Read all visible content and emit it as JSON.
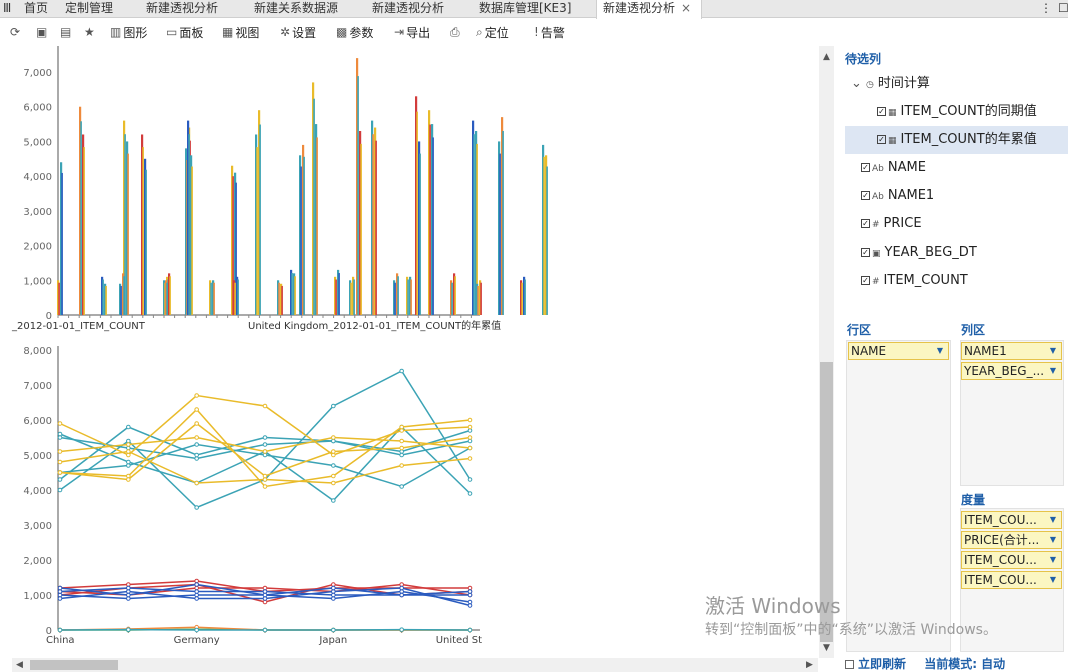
{
  "tabs": {
    "menu_icon": "Ⅲ",
    "items": [
      "首页",
      "定制管理",
      "新建透视分析",
      "新建关系数据源",
      "新建透视分析",
      "数据库管理[KE3]",
      "新建透视分析"
    ],
    "close": "×",
    "more": "⋮",
    "restore": "☐"
  },
  "toolbar": {
    "items": [
      {
        "icon": "refresh-icon",
        "glyph": "⟳",
        "label": ""
      },
      {
        "icon": "save-icon",
        "glyph": "▣",
        "label": ""
      },
      {
        "icon": "save-as-icon",
        "glyph": "▤",
        "label": ""
      },
      {
        "icon": "star-icon",
        "glyph": "★",
        "label": ""
      },
      {
        "icon": "chart-icon",
        "glyph": "▥",
        "label": "图形"
      },
      {
        "icon": "panel-icon",
        "glyph": "▭",
        "label": "面板"
      },
      {
        "icon": "view-icon",
        "glyph": "▦",
        "label": "视图"
      },
      {
        "icon": "gear-icon",
        "glyph": "✲",
        "label": "设置"
      },
      {
        "icon": "param-icon",
        "glyph": "▩",
        "label": "参数"
      },
      {
        "icon": "export-icon",
        "glyph": "⇥",
        "label": "导出"
      },
      {
        "icon": "print-icon",
        "glyph": "⎙",
        "label": ""
      },
      {
        "icon": "locate-icon",
        "glyph": "⌕",
        "label": "定位"
      },
      {
        "icon": "alert-icon",
        "glyph": "!",
        "label": "告警"
      }
    ]
  },
  "panel": {
    "candidates_title": "待选列",
    "tree": [
      {
        "label": "时间计算",
        "type": "group",
        "icon": "clock-icon",
        "glyph": "◷"
      },
      {
        "label": "ITEM_COUNT的同期值",
        "type": "calc",
        "icon": "calc-icon",
        "glyph": "▦",
        "checked": true
      },
      {
        "label": "ITEM_COUNT的年累值",
        "type": "calc",
        "icon": "calc-icon",
        "glyph": "▦",
        "checked": true,
        "selected": true
      },
      {
        "label": "NAME",
        "type": "text",
        "icon": "text-field-icon",
        "glyph": "Ab",
        "checked": true
      },
      {
        "label": "NAME1",
        "type": "text",
        "icon": "text-field-icon",
        "glyph": "Ab",
        "checked": true
      },
      {
        "label": "PRICE",
        "type": "number",
        "icon": "number-field-icon",
        "glyph": "#",
        "checked": true
      },
      {
        "label": "YEAR_BEG_DT",
        "type": "date",
        "icon": "date-field-icon",
        "glyph": "▣",
        "checked": true
      },
      {
        "label": "ITEM_COUNT",
        "type": "number",
        "icon": "number-field-icon",
        "glyph": "#",
        "checked": true
      }
    ],
    "row_zone_title": "行区",
    "row_fields": [
      "NAME"
    ],
    "col_zone_title": "列区",
    "col_fields": [
      "NAME1",
      "YEAR_BEG_..."
    ],
    "measure_title": "度量",
    "measures": [
      "ITEM_COU...",
      "PRICE(合计...",
      "ITEM_COU...",
      "ITEM_COU..."
    ],
    "footer_checkbox": "立即刷新",
    "footer_mode": "当前模式: 自动"
  },
  "watermark": {
    "line1": "激活 Windows",
    "line2": "转到“控制面板”中的“系统”以激活 Windows。"
  },
  "colors": {
    "teal": "#3ba3b5",
    "gold": "#e9bb2a",
    "red": "#d23b3b",
    "blue": "#2a5bbf",
    "green": "#5aa850",
    "orange": "#ee8a3c",
    "accent": "#1f5fa8"
  },
  "chart_data": [
    {
      "type": "bar",
      "ylim": [
        0,
        7000
      ],
      "yticks": [
        "0",
        "1,000",
        "2,000",
        "3,000",
        "4,000",
        "5,000",
        "6,000",
        "7,000"
      ],
      "xlabels": [
        "_2012-01-01_ITEM_COUNT",
        "United Kingdom_2012-01-01_ITEM_COUNT的年累值"
      ],
      "groups": [
        {
          "values": [
            1000,
            4400,
            6000,
            5200,
            1100,
            900,
            5600,
            5000
          ]
        },
        {
          "values": [
            900,
            1200,
            5200,
            4500,
            1000,
            1100,
            4800,
            5400
          ]
        },
        {
          "values": [
            1000,
            1200,
            5600,
            4600,
            1000,
            1000,
            4300,
            4100
          ]
        },
        {
          "values": [
            1000,
            1100,
            5200,
            5900,
            1000,
            900,
            4600,
            4900
          ]
        },
        {
          "values": [
            1300,
            1200,
            6700,
            5500,
            1100,
            1300,
            7400,
            5300
          ]
        },
        {
          "values": [
            1000,
            1100,
            5600,
            5400,
            1000,
            1200,
            6300,
            5000
          ]
        },
        {
          "values": [
            1100,
            1100,
            5900,
            5500,
            1000,
            1200,
            5600,
            5300
          ]
        },
        {
          "values": [
            900,
            1000,
            5000,
            5700,
            1000,
            1100,
            4900,
            4600
          ]
        }
      ]
    },
    {
      "type": "line",
      "ylim": [
        0,
        8000
      ],
      "yticks": [
        "0",
        "1,000",
        "2,000",
        "3,000",
        "4,000",
        "5,000",
        "6,000",
        "7,000",
        "8,000"
      ],
      "categories": [
        "China",
        "",
        "Germany",
        "",
        "Japan",
        "",
        "United St"
      ],
      "series": [
        {
          "color": "teal",
          "values": [
            4000,
            5400,
            3500,
            4300,
            6400,
            7400,
            4300
          ]
        },
        {
          "color": "teal",
          "values": [
            5500,
            5200,
            4900,
            5300,
            5400,
            5100,
            5700
          ]
        },
        {
          "color": "teal",
          "values": [
            4500,
            4700,
            5300,
            5000,
            4700,
            4100,
            5200
          ]
        },
        {
          "color": "teal",
          "values": [
            5600,
            4800,
            4200,
            5100,
            3700,
            5800,
            3900
          ]
        },
        {
          "color": "teal",
          "values": [
            4300,
            5800,
            5000,
            5500,
            5400,
            5000,
            5400
          ]
        },
        {
          "color": "gold",
          "values": [
            5900,
            5000,
            6700,
            6400,
            5000,
            5700,
            5800
          ]
        },
        {
          "color": "gold",
          "values": [
            4500,
            4400,
            6300,
            4100,
            4400,
            5800,
            6000
          ]
        },
        {
          "color": "gold",
          "values": [
            5100,
            5300,
            5500,
            5100,
            5500,
            5400,
            5200
          ]
        },
        {
          "color": "gold",
          "values": [
            4800,
            5100,
            4200,
            4300,
            4200,
            4700,
            4900
          ]
        },
        {
          "color": "gold",
          "values": [
            4500,
            4300,
            5900,
            4400,
            5100,
            5200,
            5500
          ]
        },
        {
          "color": "red",
          "values": [
            1200,
            1300,
            1400,
            1100,
            1200,
            1200,
            1200
          ]
        },
        {
          "color": "red",
          "values": [
            1000,
            1200,
            1300,
            800,
            1300,
            1000,
            1100
          ]
        },
        {
          "color": "red",
          "values": [
            1100,
            1000,
            1200,
            1200,
            1100,
            1300,
            1000
          ]
        },
        {
          "color": "blue",
          "values": [
            1000,
            900,
            1000,
            1000,
            900,
            1100,
            800
          ]
        },
        {
          "color": "blue",
          "values": [
            900,
            1100,
            900,
            900,
            1100,
            1200,
            700
          ]
        },
        {
          "color": "blue",
          "values": [
            1100,
            1200,
            1100,
            1100,
            1000,
            1000,
            1000
          ]
        },
        {
          "color": "blue",
          "values": [
            1200,
            1000,
            1300,
            1000,
            1200,
            1000,
            1100
          ]
        },
        {
          "color": "green",
          "values": [
            0,
            0,
            20,
            0,
            0,
            0,
            0
          ]
        },
        {
          "color": "orange",
          "values": [
            0,
            30,
            80,
            0,
            0,
            0,
            0
          ]
        },
        {
          "color": "teal",
          "values": [
            0,
            10,
            0,
            0,
            0,
            10,
            0
          ]
        }
      ]
    }
  ]
}
